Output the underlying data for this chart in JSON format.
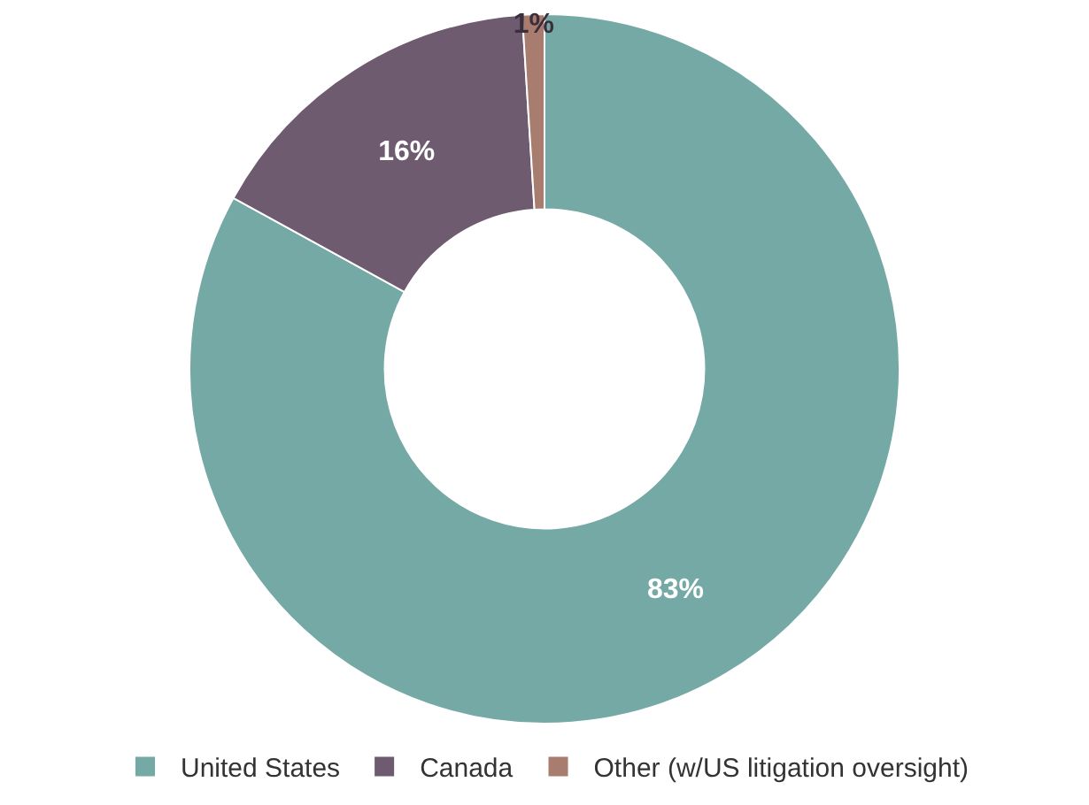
{
  "chart_data": {
    "type": "donut",
    "categories": [
      "United States",
      "Canada",
      "Other (w/US litigation oversight)"
    ],
    "values": [
      83,
      16,
      1
    ],
    "colors": [
      "#74a9a6",
      "#6e5b70",
      "#a87c6e"
    ],
    "value_labels": [
      "83%",
      "16%",
      "1%"
    ],
    "legend": "bottom"
  }
}
